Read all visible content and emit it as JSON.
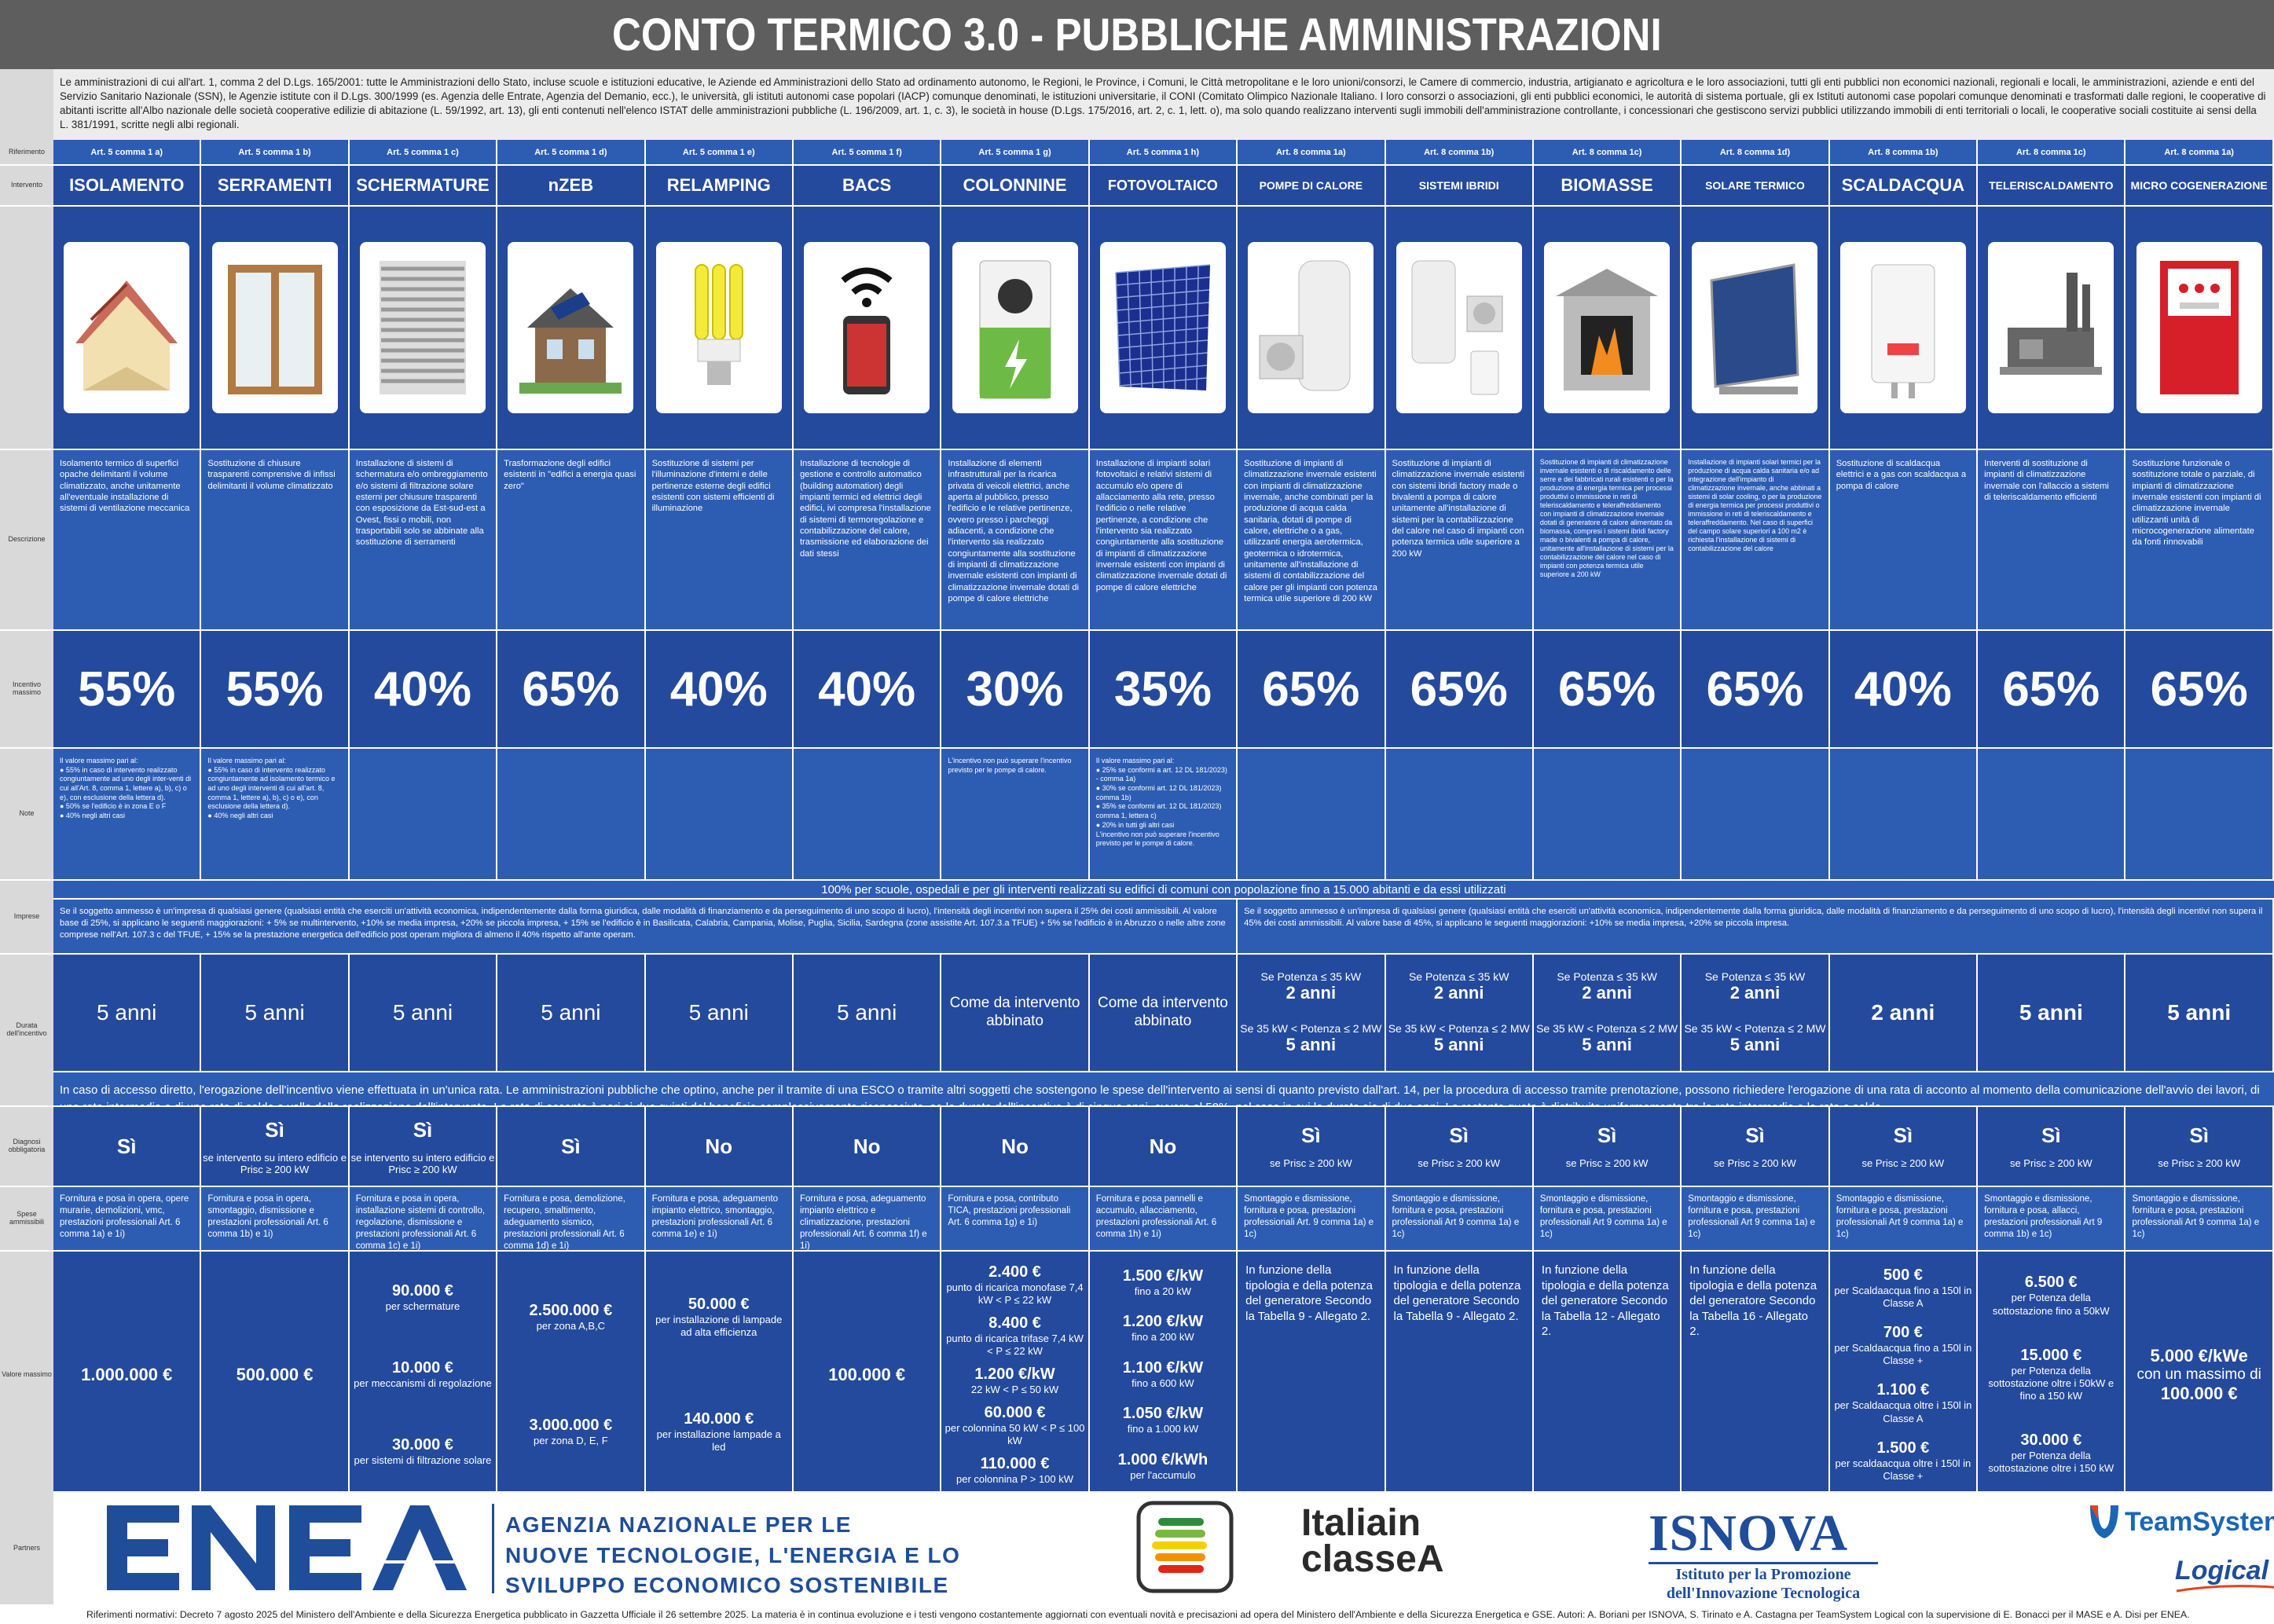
{
  "title": "CONTO TERMICO 3.0 - PUBBLICHE AMMINISTRAZIONI",
  "intro": "Le amministrazioni di cui all'art. 1, comma 2 del D.Lgs. 165/2001: tutte le Amministrazioni dello Stato, incluse scuole e istituzioni educative, le Aziende ed Amministrazioni dello Stato ad ordinamento autonomo, le Regioni, le Province, i Comuni, le Città metropolitane e le loro unioni/consorzi, le Camere di commercio, industria, artigianato e agricoltura e le loro associazioni, tutti gli enti pubblici non economici nazionali, regionali e locali, le amministrazioni, aziende e enti del Servizio Sanitario Nazionale (SSN), le Agenzie istitute con il D.Lgs. 300/1999 (es. Agenzia delle Entrate, Agenzia del Demanio, ecc.), le università, gli istituti autonomi case popolari (IACP) comunque denominati, le istituzioni universitarie, il CONI (Comitato Olimpico Nazionale Italiano. I loro consorzi o associazioni, gli enti pubblici economici, le autorità di sistema portuale, gli ex Istituti autonomi case popolari comunque denominati e trasformati dalle regioni, le cooperative di abitanti iscritte all'Albo nazionale delle società cooperative edilizie di abitazione (L. 59/1992, art. 13), gli enti contenuti nell'elenco ISTAT delle amministrazioni pubbliche (L. 196/2009, art. 1, c. 3), le società in house (D.Lgs. 175/2016, art. 2, c. 1, lett. o), ma solo quando realizzano interventi sugli immobili dell'amministrazione controllante, i concessionari che gestiscono servizi pubblici utilizzando immobili di enti territoriali o locali, le cooperative sociali costituite ai sensi della L. 381/1991, scritte negli albi regionali.",
  "labels": {
    "riferimento": "Riferimento",
    "intervento": "Intervento",
    "descrizione": "Descrizione",
    "incentivo": "Incentivo massimo",
    "note": "Note",
    "imprese": "Imprese",
    "durata": "Durata dell'incentivo",
    "diagnosi": "Diagnosi obbligatoria",
    "spese": "Spese ammissibili",
    "valore": "Valore massimo",
    "partners": "Partners"
  },
  "columns": [
    {
      "ref": "Art. 5 comma 1 a)",
      "name": "ISOLAMENTO",
      "icon": "insulation-icon",
      "desc": "Isolamento termico di superfici opache delimitanti il volume climatizzato, anche unitamente all'eventuale installazione di sistemi di ventilazione meccanica",
      "pct": "55%",
      "notes": [
        "Il valore massimo pari al:",
        "● 55% in caso di intervento realizzato congiuntamente ad uno degli inter-venti di cui all'Art. 8, comma 1, lettere a), b), c) o e), con esclusione della lettera d).",
        "● 50% se l'edificio è in zona E o F",
        "● 40% negli altri casi"
      ],
      "dur": "5 anni",
      "diag": "Sì",
      "diag_sub": "",
      "spese": "Fornitura e posa in opera, opere murarie, demolizioni, vmc, prestazioni professionali Art. 6 comma 1a) e 1i)"
    },
    {
      "ref": "Art. 5 comma 1 b)",
      "name": "SERRAMENTI",
      "icon": "window-icon",
      "desc": "Sostituzione di chiusure trasparenti comprensive di infissi delimitanti il volume climatizzato",
      "pct": "55%",
      "notes": [
        "Il valore massimo pari al:",
        "● 55% in caso di intervento realizzato congiuntamente ad isolamento termico e ad uno degli interventi di cui all'art. 8, comma 1, lettere a), b), c) o e), con esclusione della lettera d).",
        "● 40% negli altri casi"
      ],
      "dur": "5 anni",
      "diag": "Sì",
      "diag_sub": "se intervento su intero edificio e Prisc ≥ 200 kW",
      "spese": "Fornitura e posa in opera, smontaggio, dismissione e prestazioni professionali Art. 6 comma 1b) e 1i)"
    },
    {
      "ref": "Art. 5 comma 1 c)",
      "name": "SCHERMATURE",
      "icon": "shading-icon",
      "desc": "Installazione di sistemi di schermatura e/o ombreggiamento e/o sistemi di filtrazione solare esterni per chiusure trasparenti con esposizione da Est-sud-est a Ovest, fissi o mobili, non trasportabili solo se abbinate alla sostituzione di serramenti",
      "pct": "40%",
      "notes": [],
      "dur": "5 anni",
      "diag": "Sì",
      "diag_sub": "se intervento su intero edificio e Prisc ≥ 200 kW",
      "spese": "Fornitura e posa in opera, installazione sistemi di controllo, regolazione, dismissione e prestazioni professionali Art. 6 comma 1c) e 1i)"
    },
    {
      "ref": "Art. 5 comma 1 d)",
      "name": "nZEB",
      "icon": "house-icon",
      "desc": "Trasformazione degli edifici esistenti in \"edifici a energia quasi zero\"",
      "pct": "65%",
      "notes": [],
      "dur": "5 anni",
      "diag": "Sì",
      "diag_sub": "",
      "spese": "Fornitura e posa, demolizione, recupero, smaltimento, adeguamento sismico, prestazioni professionali Art. 6 comma 1d) e 1i)"
    },
    {
      "ref": "Art. 5 comma 1 e)",
      "name": "RELAMPING",
      "icon": "lightbulb-icon",
      "desc": "Sostituzione di sistemi per l'illuminazione d'interni e delle pertinenze esterne degli edifici esistenti con sistemi efficienti di illuminazione",
      "pct": "40%",
      "notes": [],
      "dur": "5 anni",
      "diag": "No",
      "diag_sub": "",
      "spese": "Fornitura e posa, adeguamento impianto elettrico, smontaggio, prestazioni professionali Art. 6 comma 1e) e 1i)"
    },
    {
      "ref": "Art. 5 comma 1 f)",
      "name": "BACS",
      "icon": "smart-control-icon",
      "desc": "Installazione di tecnologie di gestione e controllo automatico (building automation) degli impianti termici ed elettrici degli edifici, ivi compresa l'installazione di sistemi di termoregolazione e contabilizzazione del calore, trasmissione ed elaborazione dei dati stessi",
      "pct": "40%",
      "notes": [],
      "dur": "5 anni",
      "diag": "No",
      "diag_sub": "",
      "spese": "Fornitura e posa, adeguamento impianto elettrico e climatizzazione, prestazioni professionali Art. 6 comma 1f) e 1i)"
    },
    {
      "ref": "Art. 5 comma 1 g)",
      "name": "COLONNINE",
      "icon": "ev-charger-icon",
      "desc": "Installazione di elementi infrastrutturali per la ricarica privata di veicoli elettrici, anche aperta al pubblico, presso l'edificio e le relative pertinenze, ovvero presso i parcheggi adiacenti, a condizione che l'intervento sia realizzato congiuntamente alla sostituzione di impianti di climatizzazione invernale esistenti con impianti di climatizzazione invernale dotati di pompe di calore elettriche",
      "pct": "30%",
      "notes": [
        "L'incentivo non può superare l'incentivo previsto per le pompe di calore."
      ],
      "dur": "Come da intervento abbinato",
      "diag": "No",
      "diag_sub": "",
      "spese": "Fornitura e posa, contributo TICA, prestazioni professionali Art. 6 comma 1g) e 1i)"
    },
    {
      "ref": "Art. 5 comma 1 h)",
      "name": "FOTOVOLTAICO",
      "icon": "solar-panel-icon",
      "desc": "Installazione di impianti solari fotovoltaici e relativi sistemi di accumulo e/o opere di allacciamento alla rete, presso l'edificio o nelle relative pertinenze, a condizione che l'intervento sia realizzato congiuntamente alla sostituzione di impianti di climatizzazione invernale esistenti con impianti di climatizzazione invernale dotati di pompe di calore elettriche",
      "pct": "35%",
      "notes": [
        "Il valore massimo pari al:",
        "● 25% se conformi a art. 12 DL 181/2023) - comma 1a)",
        "● 30% se conformi art. 12 DL 181/2023) comma 1b)",
        "● 35% se conformi art. 12 DL 181/2023) comma 1, lettera c)",
        "● 20% in tutti gli altri casi",
        "L'incentivo non può superare l'incentivo previsto per le pompe di calore."
      ],
      "dur": "Come da intervento abbinato",
      "diag": "No",
      "diag_sub": "",
      "spese": "Fornitura e posa pannelli e accumulo, allacciamento, prestazioni professionali Art. 6 comma 1h) e 1i)"
    },
    {
      "ref": "Art. 8 comma 1a)",
      "name": "POMPE DI CALORE",
      "icon": "heat-pump-icon",
      "desc": "Sostituzione di impianti di climatizzazione invernale esistenti con impianti di climatizzazione invernale, anche combinati per la produzione di acqua calda sanitaria, dotati di pompe di calore, elettriche o a gas, utilizzanti energia aerotermica, geotermica o idrotermica, unitamente all'installazione di sistemi di contabilizzazione del calore per gli impianti con potenza termica utile superiore di 200 kW",
      "pct": "65%",
      "notes": [],
      "dur_two": [
        "Se Potenza ≤ 35 kW",
        "2 anni",
        "Se 35 kW < Potenza ≤ 2 MW",
        "5 anni"
      ],
      "diag": "Sì",
      "diag_sub": "se Prisc ≥ 200 kW",
      "spese": "Smontaggio e dismissione, fornitura e posa, prestazioni professionali Art. 9 comma 1a) e 1c)",
      "val_text": "In funzione della tipologia e della potenza del generatore Secondo la Tabella 9 - Allegato 2."
    },
    {
      "ref": "Art. 8 comma 1b)",
      "name": "SISTEMI IBRIDI",
      "icon": "hybrid-system-icon",
      "desc": "Sostituzione di impianti di climatizzazione invernale esistenti con sistemi ibridi factory made o bivalenti a pompa di calore unitamente all'installazione di sistemi per la contabilizzazione del calore nel caso di impianti con potenza termica utile superiore a 200 kW",
      "pct": "65%",
      "notes": [],
      "dur_two": [
        "Se Potenza ≤ 35 kW",
        "2 anni",
        "Se 35 kW < Potenza ≤ 2 MW",
        "5 anni"
      ],
      "diag": "Sì",
      "diag_sub": "se Prisc ≥ 200 kW",
      "spese": "Smontaggio e dismissione, fornitura e posa, prestazioni professionali Art 9 comma 1a) e 1c)",
      "val_text": "In funzione della tipologia e della potenza del generatore Secondo la Tabella 9 - Allegato 2."
    },
    {
      "ref": "Art. 8 comma 1c)",
      "name": "BIOMASSE",
      "icon": "fireplace-icon",
      "desc": "Sostituzione di impianti di climatizzazione invernale esistenti o di riscaldamento delle serre e dei fabbricati rurali esistenti o per la produzione di energia termica per processi produttivi o immissione in reti di teleriscaldamento e teleraffreddamento con impianti di climatizzazione invernale dotati di generatore di calore alimentato da biomassa, compresi i sistemi ibridi factory made o bivalenti a pompa di calore, unitamente all'installazione di sistemi per la contabilizzazione del calore nel caso di impianti con potenza termica utile superiore a 200 kW",
      "pct": "65%",
      "notes": [],
      "dur_two": [
        "Se Potenza ≤ 35 kW",
        "2 anni",
        "Se 35 kW < Potenza ≤ 2 MW",
        "5 anni"
      ],
      "diag": "Sì",
      "diag_sub": "se Prisc ≥ 200 kW",
      "spese": "Smontaggio e dismissione, fornitura e posa, prestazioni professionali Art 9 comma 1a) e 1c)",
      "val_text": "In funzione della tipologia e della potenza del generatore Secondo la Tabella 12 - Allegato 2."
    },
    {
      "ref": "Art. 8 comma 1d)",
      "name": "SOLARE TERMICO",
      "icon": "solar-thermal-icon",
      "desc": "Installazione di impianti solari termici per la produzione di acqua calda sanitaria e/o ad integrazione dell'impianto di climatizzazione invernale, anche abbinati a sistemi di solar cooling, o per la produzione di energia termica per processi produttivi o immissione in reti di teleriscaldamento e teleraffreddamento. Nel caso di superfici del campo solare superiori a 100 m2 è richiesta l'installazione di sistemi di contabilizzazione del calore",
      "pct": "65%",
      "notes": [],
      "dur_two": [
        "Se Potenza ≤ 35 kW",
        "2 anni",
        "Se 35 kW < Potenza ≤ 2 MW",
        "5 anni"
      ],
      "diag": "Sì",
      "diag_sub": "se Prisc ≥ 200 kW",
      "spese": "Smontaggio e dismissione, fornitura e posa, prestazioni professionali Art 9 comma 1a) e 1c)",
      "val_text": "In funzione della tipologia e della potenza del generatore Secondo la Tabella 16 - Allegato 2."
    },
    {
      "ref": "Art. 8 comma 1b)",
      "name": "SCALDACQUA",
      "icon": "water-heater-icon",
      "desc": "Sostituzione di scaldacqua elettrici e a gas con scaldacqua a pompa di calore",
      "pct": "40%",
      "notes": [],
      "dur": "2 anni",
      "diag": "Sì",
      "diag_sub": "se Prisc ≥ 200 kW",
      "spese": "Smontaggio e dismissione, fornitura e posa, prestazioni professionali Art 9 comma 1a) e 1c)"
    },
    {
      "ref": "Art. 8 comma 1c)",
      "name": "TELERISCALDAMENTO",
      "icon": "district-heating-icon",
      "desc": "Interventi di sostituzione di impianti di climatizzazione invernale con l'allaccio a sistemi di teleriscaldamento efficienti",
      "pct": "65%",
      "notes": [],
      "dur": "5 anni",
      "diag": "Sì",
      "diag_sub": "se Prisc ≥ 200 kW",
      "spese": "Smontaggio e dismissione, fornitura e posa, allacci, prestazioni professionali Art 9 comma 1b) e 1c)"
    },
    {
      "ref": "Art. 8 comma 1a)",
      "name": "MICRO COGENERAZIONE",
      "icon": "cogeneration-icon",
      "desc": "Sostituzione funzionale o sostituzione totale o parziale, di impianti di climatizzazione invernale esistenti con impianti di climatizzazione invernale utilizzanti unità di microcogenerazione alimentate da fonti rinnovabili",
      "pct": "65%",
      "notes": [],
      "dur": "5 anni",
      "diag": "Sì",
      "diag_sub": "se Prisc ≥ 200 kW",
      "spese": "Smontaggio e dismissione, fornitura e posa, prestazioni professionali Art 9 comma 1a) e 1c)"
    }
  ],
  "span_100": "100%  per scuole, ospedali e per gli interventi realizzati su edifici di comuni con popolazione fino a 15.000 abitanti e da essi utilizzati",
  "imprese_left": "Se il soggetto ammesso è un'impresa di qualsiasi genere (qualsiasi entità che eserciti un'attività economica, indipendentemente dalla forma giuridica, dalle modalità di finanziamento e da perseguimento di uno scopo di lucro), l'intensità degli incentivi non supera il 25% dei costi ammissibili. Al valore base di 25%, si applicano le seguenti maggiorazioni: + 5% se multintervento, +10% se media impresa, +20% se piccola impresa, + 15% se l'edificio è in Basilicata, Calabria, Campania, Molise, Puglia, Sicilia, Sardegna (zone assistite Art. 107.3.a TFUE) + 5% se l'edificio è in Abruzzo o nelle altre zone comprese nell'Art. 107.3 c del TFUE, + 15% se la prestazione energetica dell'edificio post operam migliora di  almeno  il  40%  rispetto all'ante operam.",
  "imprese_right": "Se il soggetto ammesso è un'impresa di qualsiasi genere (qualsiasi entità che eserciti un'attività economica, indipendentemente dalla forma giuridica, dalle modalità di finanziamento e da perseguimento di uno scopo di lucro), l'intensità degli incentivi non supera il 45% dei costi ammissibili. Al valore base di 45%, si applicano le seguenti maggiorazioni: +10% se media impresa, +20% se piccola impresa.",
  "rata": "In caso di accesso diretto, l'erogazione dell'incentivo viene effettuata in un'unica rata. Le amministrazioni pubbliche che optino, anche per il tramite di una ESCO o tramite altri soggetti che sostengono le spese dell'intervento ai sensi di quanto previsto dall'art. 14, per la procedura di accesso tramite prenotazione, possono richiedere l'erogazione di una rata di acconto al momento della comunicazione dell'avvio dei lavori, di una rata intermedia e di una rata di saldo a valle della realizzazione dell'intervento. La rata di acconto è pari ai due quinti del beneficio complessivamente riconosciuto, se la durata dell'incentivo è di cinque anni, ovvero al 50%, nel caso in cui la durata sia di due anni. La restante quota è distribuita uniformemente tra la rata intermedia e la rata a saldo.",
  "val": {
    "isolamento": "1.000.000 €",
    "serramenti": "500.000 €",
    "schermature": [
      [
        "90.000 €",
        "per schermature"
      ],
      [
        "10.000 €",
        "per meccanismi di regolazione"
      ],
      [
        "30.000 €",
        "per sistemi di filtrazione solare"
      ]
    ],
    "nzeb": [
      [
        "2.500.000 €",
        "per zona A,B,C"
      ],
      [
        "3.000.000 €",
        "per zona D, E, F"
      ]
    ],
    "relamping": [
      [
        "50.000 €",
        "per installazione di lampade ad alta efficienza"
      ],
      [
        "140.000 €",
        "per installazione lampade a led"
      ]
    ],
    "bacs": "100.000 €",
    "colonnine": [
      [
        "2.400 €",
        "punto di ricarica monofase 7,4 kW < P ≤ 22 kW"
      ],
      [
        "8.400 €",
        "punto di ricarica trifase 7,4 kW < P ≤ 22 kW"
      ],
      [
        "1.200 €/kW",
        "22 kW < P ≤ 50 kW"
      ],
      [
        "60.000 €",
        "per colonnina 50 kW < P ≤ 100 kW"
      ],
      [
        "110.000 €",
        "per colonnina P > 100 kW"
      ]
    ],
    "fotovoltaico": [
      [
        "1.500 €/kW",
        "fino a 20 kW"
      ],
      [
        "1.200 €/kW",
        "fino a 200 kW"
      ],
      [
        "1.100 €/kW",
        "fino a 600 kW"
      ],
      [
        "1.050 €/kW",
        "fino a 1.000 kW"
      ],
      [
        "1.000 €/kWh",
        "per l'accumulo"
      ]
    ],
    "scaldacqua": [
      [
        "500 €",
        "per Scaldaacqua fino a 150l in Classe A"
      ],
      [
        "700 €",
        "per Scaldaacqua fino a 150l in Classe +"
      ],
      [
        "1.100 €",
        "per Scaldaacqua oltre i 150l in Classe A"
      ],
      [
        "1.500 €",
        "per scaldaacqua oltre i 150l in Classe +"
      ]
    ],
    "teleriscaldamento": [
      [
        "6.500 €",
        "per Potenza della sottostazione fino a 50kW"
      ],
      [
        "15.000 €",
        "per Potenza della sottostazione oltre i 50kW e fino a 150 kW"
      ],
      [
        "30.000 €",
        "per Potenza della sottostazione oltre i 150 kW"
      ]
    ],
    "micro": [
      "5.000 €/kWe",
      "con un massimo di",
      "100.000 €"
    ]
  },
  "partners": {
    "enea_logo": "ENEA",
    "enea_lines": [
      "AGENZIA NAZIONALE PER LE",
      "NUOVE TECNOLOGIE, L'ENERGIA E LO",
      "SVILUPPO ECONOMICO SOSTENIBILE"
    ],
    "italia_lines": [
      "Italiain",
      "classeA"
    ],
    "isnova": "ISNOVA",
    "isnova_sub": [
      "Istituto per la Promozione",
      "dell'Innovazione Tecnologica"
    ],
    "teamsystem": "TeamSystem",
    "logical": "Logical"
  },
  "footer": "Riferimenti normativi: Decreto 7 agosto 2025 del Ministero dell'Ambiente e della Sicurezza Energetica pubblicato in Gazzetta Ufficiale il 26 settembre 2025. La materia è in continua evoluzione e i testi vengono costantemente aggiornati con eventuali novità e precisazioni ad opera del Ministero dell'Ambiente e della Sicurezza Energetica e GSE. Autori: A. Boriani per ISNOVA, S. Tirinato e A. Castagna per TeamSystem Logical con la supervisione di E. Bonacci per il MASE e A. Disi per ENEA."
}
